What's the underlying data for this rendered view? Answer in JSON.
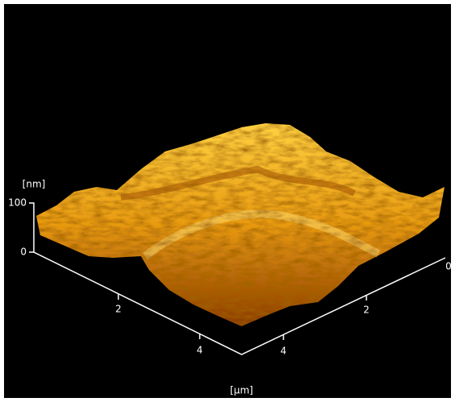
{
  "z_axis": {
    "unit": "[nm]",
    "ticks": [
      "100",
      "0"
    ]
  },
  "left_axis": {
    "ticks": [
      "2",
      "4"
    ]
  },
  "right_axis": {
    "ticks": [
      "4",
      "2",
      "0"
    ]
  },
  "xy_unit": "[μm]"
}
